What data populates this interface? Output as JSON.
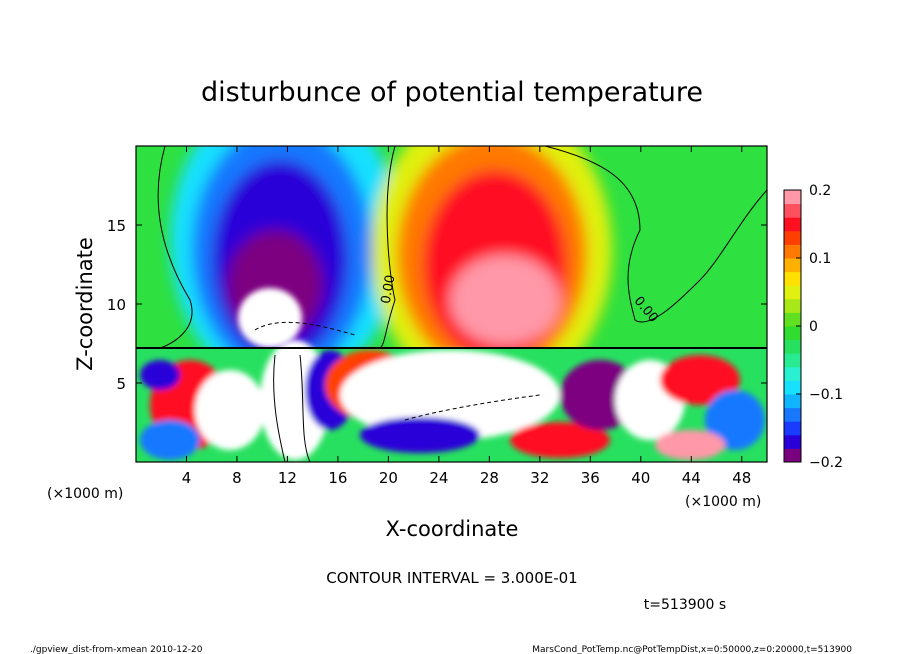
{
  "chart_data": {
    "type": "heatmap",
    "title": "disturbunce of potential temperature",
    "xlabel": "X-coordinate",
    "ylabel": "Z-coordinate",
    "x_unit": "(×1000 m)",
    "y_unit": "(×1000 m)",
    "xlim": [
      0,
      50
    ],
    "ylim": [
      0,
      20
    ],
    "x_ticks": [
      4,
      8,
      12,
      16,
      20,
      24,
      28,
      32,
      36,
      40,
      44,
      48
    ],
    "y_ticks": [
      5,
      10,
      15
    ],
    "colorbar": {
      "range": [
        -0.2,
        0.2
      ],
      "tick_values": [
        0.2,
        0.1,
        0,
        -0.1,
        -0.2
      ],
      "tick_labels": [
        "0.2",
        "0.1",
        "0",
        "−0.1",
        "−0.2"
      ],
      "stops": [
        "#7b0080",
        "#2a00d8",
        "#1a3cff",
        "#1878ff",
        "#10b4ff",
        "#18e0ff",
        "#28f0d0",
        "#28ea90",
        "#28e060",
        "#30dc30",
        "#60e020",
        "#a8e818",
        "#e0f010",
        "#ffe000",
        "#ffb000",
        "#ff7800",
        "#ff4000",
        "#ff1020",
        "#ff5060",
        "#ff98a8"
      ]
    },
    "contour_labels": [
      "0.00",
      "0.00"
    ],
    "annotations": {
      "contour_interval": "CONTOUR INTERVAL = 3.000E-01",
      "time": "t=513900 s"
    }
  },
  "footer": {
    "left": "./gpview_dist-from-xmean  2010-12-20",
    "right": "MarsCond_PotTemp.nc@PotTempDist,x=0:50000,z=0:20000,t=513900"
  }
}
